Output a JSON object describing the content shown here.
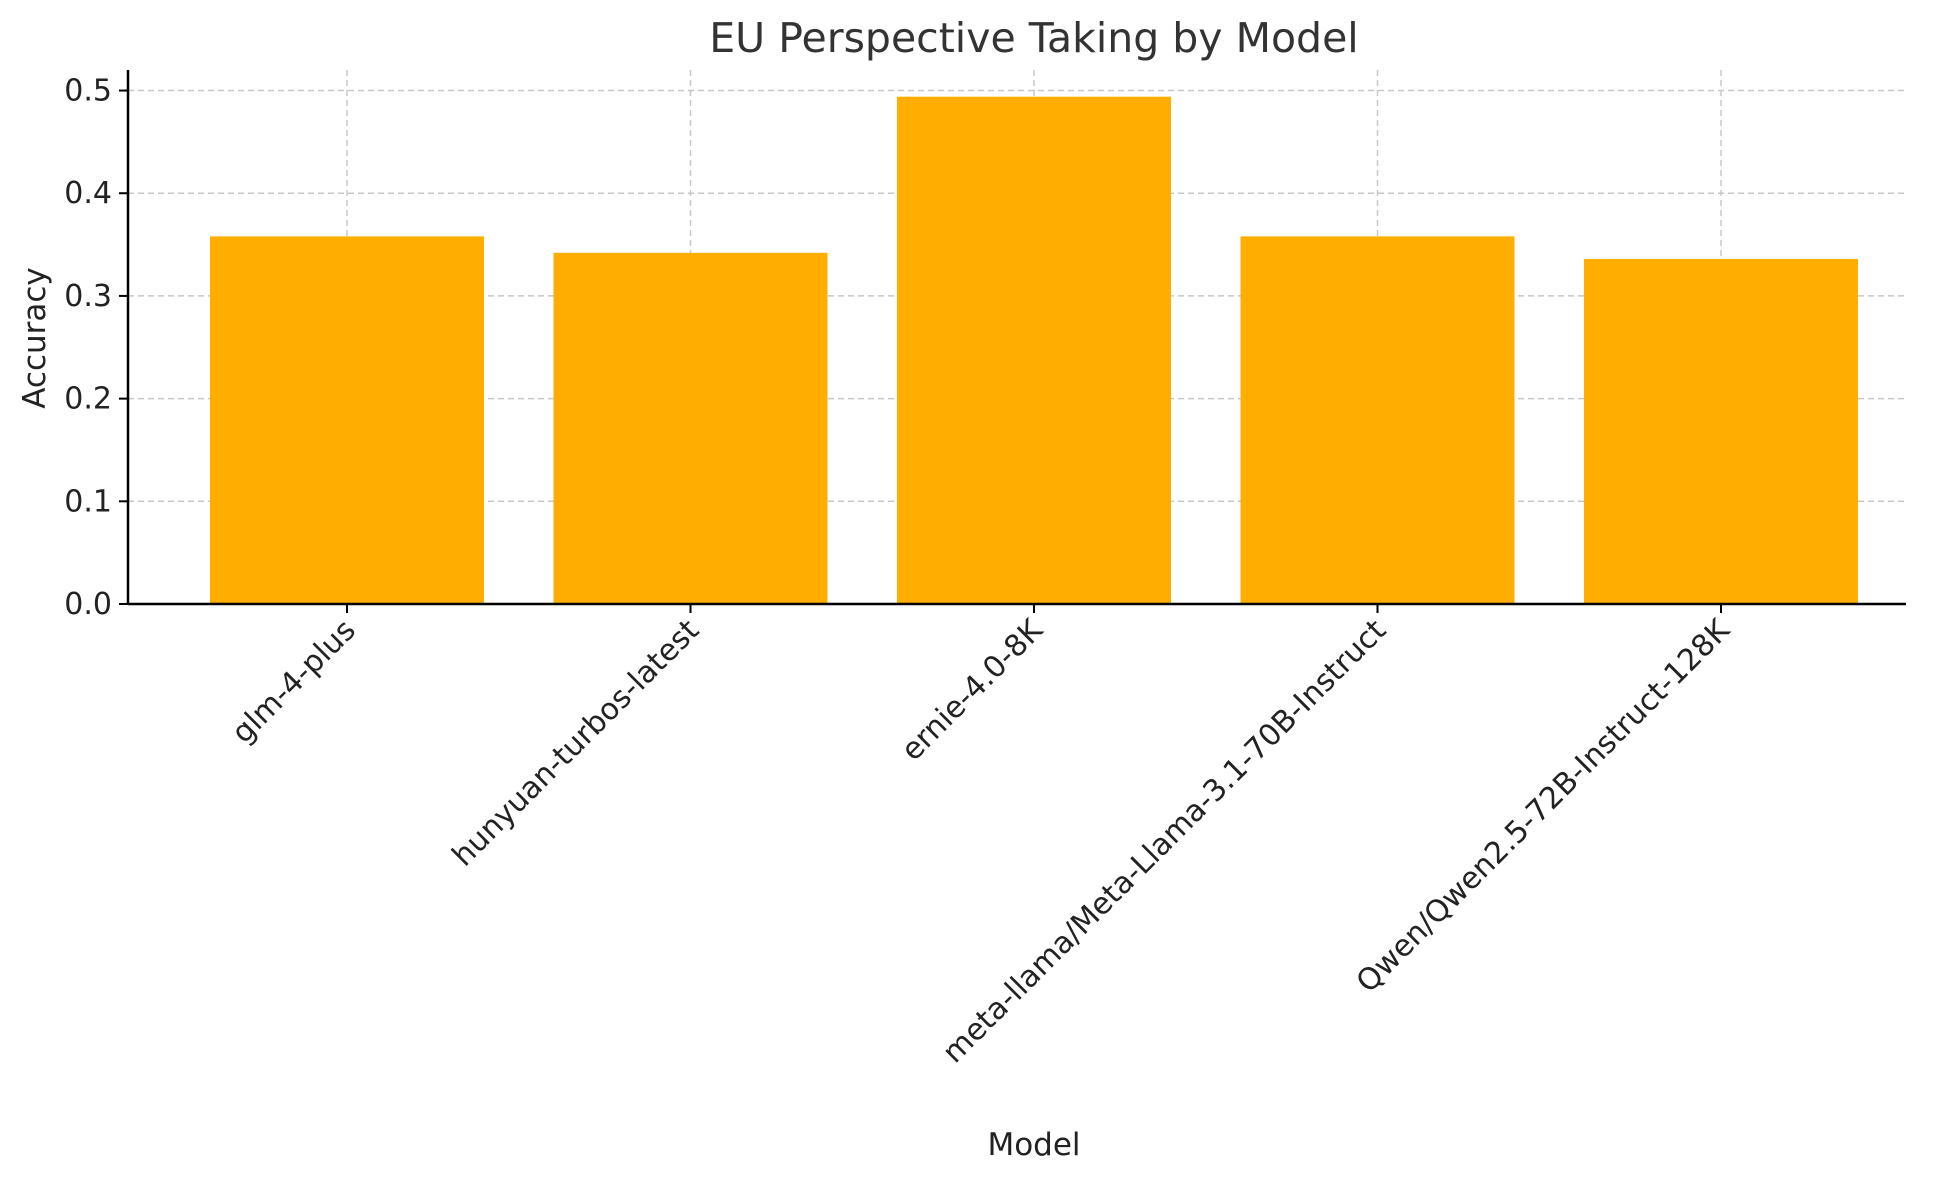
{
  "chart_data": {
    "type": "bar",
    "title": "EU Perspective Taking by Model",
    "xlabel": "Model",
    "ylabel": "Accuracy",
    "categories": [
      "glm-4-plus",
      "hunyuan-turbos-latest",
      "ernie-4.0-8K",
      "meta-llama/Meta-Llama-3.1-70B-Instruct",
      "Qwen/Qwen2.5-72B-Instruct-128K"
    ],
    "values": [
      0.358,
      0.342,
      0.494,
      0.358,
      0.336
    ],
    "ylim": [
      0,
      0.52
    ],
    "yticks": [
      0.0,
      0.1,
      0.2,
      0.3,
      0.4,
      0.5
    ],
    "ytick_labels": [
      "0.0",
      "0.1",
      "0.2",
      "0.3",
      "0.4",
      "0.5"
    ],
    "grid": true,
    "bar_color": "#FFAE00"
  }
}
